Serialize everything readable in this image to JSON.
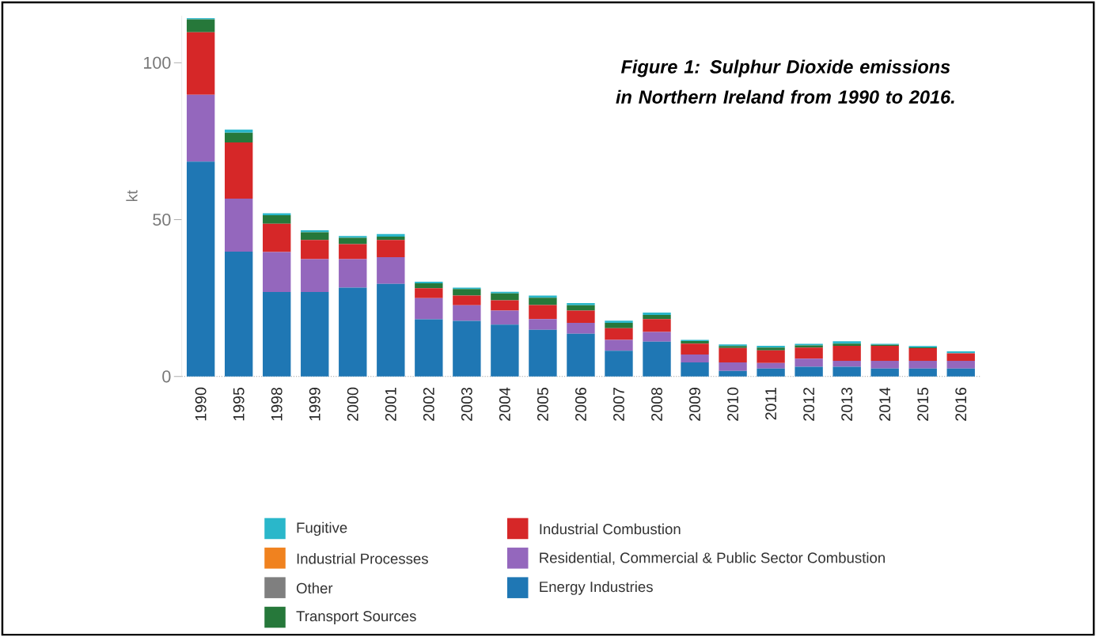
{
  "chart_data": {
    "type": "bar",
    "stacked": true,
    "title": "Figure 1: Sulphur Dioxide emissions in Northern Ireland from 1990 to 2016.",
    "ylabel": "kt",
    "categories": [
      "1990",
      "1995",
      "1998",
      "1999",
      "2000",
      "2001",
      "2002",
      "2003",
      "2004",
      "2005",
      "2006",
      "2007",
      "2008",
      "2009",
      "2010",
      "2011",
      "2012",
      "2013",
      "2014",
      "2015",
      "2016"
    ],
    "ylim": [
      0,
      115
    ],
    "yticks": [
      0,
      50,
      100
    ],
    "grid": false,
    "legend": "bottom",
    "series": [
      {
        "name": "Energy Industries",
        "color": "#1f77b4",
        "values": [
          68.5,
          39.8,
          26.9,
          26.9,
          28.3,
          29.5,
          18.2,
          17.7,
          16.5,
          14.9,
          13.6,
          8.2,
          11.1,
          4.5,
          1.8,
          2.5,
          3.1,
          3.1,
          2.5,
          2.5,
          2.5
        ]
      },
      {
        "name": "Residential, Commercial & Public Sector Combustion",
        "color": "#9467bd",
        "values": [
          21.3,
          16.9,
          12.8,
          10.5,
          9.1,
          8.5,
          6.8,
          5.0,
          4.5,
          3.4,
          3.5,
          3.5,
          3.1,
          2.5,
          2.7,
          1.8,
          2.6,
          1.9,
          2.5,
          2.5,
          2.5
        ]
      },
      {
        "name": "Industrial Combustion",
        "color": "#d62728",
        "values": [
          19.9,
          17.9,
          9.0,
          6.1,
          4.8,
          5.5,
          3.1,
          3.1,
          3.3,
          4.5,
          3.9,
          3.7,
          4.1,
          3.5,
          4.6,
          4.0,
          3.5,
          4.8,
          4.8,
          4.0,
          2.4
        ]
      },
      {
        "name": "Transport Sources",
        "color": "#26783a",
        "values": [
          4.1,
          3.1,
          2.7,
          2.5,
          2.0,
          1.1,
          1.6,
          2.1,
          2.2,
          2.3,
          1.7,
          1.7,
          1.3,
          0.8,
          0.6,
          0.9,
          0.7,
          0.7,
          0.3,
          0.3,
          null
        ]
      },
      {
        "name": "Other",
        "color": "#7f7f7f",
        "values": [
          0,
          0,
          0,
          0,
          0,
          0,
          0,
          0,
          0,
          0,
          0,
          0,
          0,
          0,
          0,
          0,
          0,
          0,
          0,
          0,
          0
        ]
      },
      {
        "name": "Industrial Processes",
        "color": "#f0821f",
        "values": [
          0,
          0,
          0,
          0,
          0,
          0,
          0,
          0,
          0,
          0,
          0,
          0,
          0,
          0,
          0,
          0,
          0,
          0,
          0,
          0,
          0
        ]
      },
      {
        "name": "Fugitive",
        "color": "#2ab7ca",
        "values": [
          0.4,
          1.0,
          0.6,
          0.6,
          0.6,
          0.8,
          0.5,
          0.4,
          0.5,
          0.7,
          0.7,
          0.7,
          0.8,
          0.4,
          0.5,
          0.6,
          0.5,
          0.7,
          0.3,
          0.4,
          0.6
        ]
      }
    ]
  }
}
